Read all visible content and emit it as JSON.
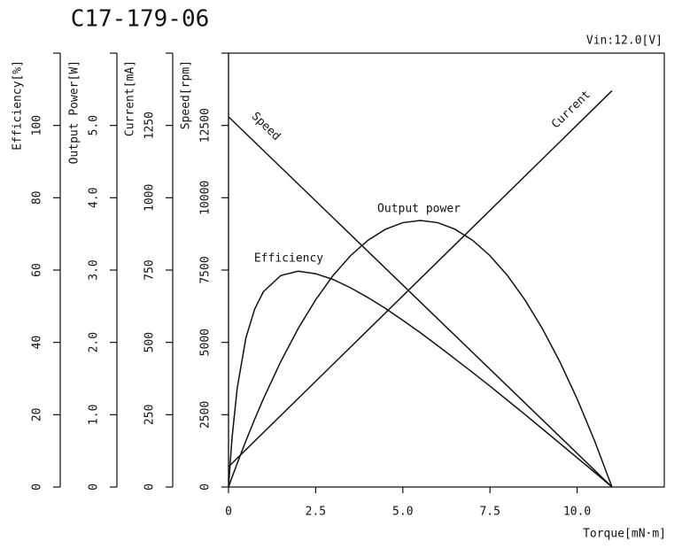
{
  "chart_data": {
    "type": "line",
    "title": "C17-179-06",
    "annotation": "Vin:12.0[V]",
    "xlabel": "Torque[mN·m]",
    "xlim": [
      0,
      12.5
    ],
    "xticks": [
      0,
      2.5,
      {
        "value": 5,
        "label": "5.0"
      },
      7.5,
      {
        "value": 10,
        "label": "10.0"
      }
    ],
    "y_axes": [
      {
        "label": "Efficiency[%]",
        "ylim": [
          0,
          120
        ],
        "yticks": [
          0,
          20,
          40,
          60,
          80,
          100
        ]
      },
      {
        "label": "Output Power[W]",
        "ylim": [
          0,
          6
        ],
        "yticks": [
          0,
          {
            "value": 1,
            "label": "1.0"
          },
          {
            "value": 2,
            "label": "2.0"
          },
          {
            "value": 3,
            "label": "3.0"
          },
          {
            "value": 4,
            "label": "4.0"
          },
          {
            "value": 5,
            "label": "5.0"
          }
        ]
      },
      {
        "label": "Current[mA]",
        "ylim": [
          0,
          1500
        ],
        "yticks": [
          0,
          250,
          500,
          750,
          1000,
          1250
        ]
      },
      {
        "label": "Speed[rpm]",
        "ylim": [
          0,
          15000
        ],
        "yticks": [
          0,
          2500,
          5000,
          7500,
          10000,
          12500
        ]
      }
    ],
    "series": [
      {
        "name": "Speed",
        "axis": 3,
        "color": "#111111",
        "x": [
          0,
          11
        ],
        "values": [
          12800,
          0
        ]
      },
      {
        "name": "Current",
        "axis": 2,
        "color": "#111111",
        "x": [
          0,
          11
        ],
        "values": [
          70,
          1370
        ]
      },
      {
        "name": "Output power",
        "axis": 1,
        "color": "#111111",
        "x": [
          0,
          0.1,
          0.25,
          0.5,
          0.75,
          1,
          1.5,
          2,
          2.5,
          3,
          3.5,
          4,
          4.5,
          5,
          5.5,
          6,
          6.5,
          7,
          7.5,
          8,
          8.5,
          9,
          9.5,
          10,
          10.5,
          11
        ],
        "values": [
          0,
          0.133,
          0.328,
          0.64,
          0.937,
          1.219,
          1.736,
          2.193,
          2.589,
          2.925,
          3.199,
          3.412,
          3.564,
          3.656,
          3.686,
          3.656,
          3.564,
          3.412,
          3.199,
          2.925,
          2.589,
          2.193,
          1.736,
          1.219,
          0.64,
          0
        ]
      },
      {
        "name": "Efficiency",
        "axis": 0,
        "color": "#111111",
        "x": [
          0,
          0.1,
          0.25,
          0.5,
          0.75,
          1,
          1.5,
          2,
          2.5,
          3,
          3.5,
          4,
          4.5,
          5,
          5.5,
          6,
          6.5,
          7,
          7.5,
          8,
          8.5,
          9,
          9.5,
          10,
          10.5,
          11
        ],
        "values": [
          0,
          13.5,
          27.4,
          41.3,
          49.2,
          54.0,
          58.5,
          59.7,
          59.0,
          57.4,
          55.1,
          52.4,
          49.4,
          46.1,
          42.7,
          39.1,
          35.4,
          31.7,
          27.9,
          24.0,
          20.1,
          16.1,
          12.1,
          8.1,
          4.1,
          0
        ]
      }
    ]
  }
}
